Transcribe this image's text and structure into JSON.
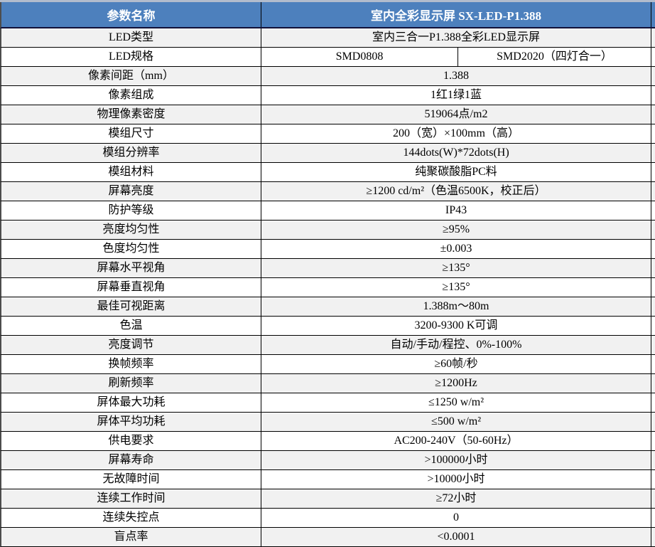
{
  "header": {
    "param_col": "参数名称",
    "product_col": "室内全彩显示屏 SX-LED-P1.388"
  },
  "colors": {
    "header_bg": "#4d80bd",
    "header_text": "#ffffff",
    "row_bg": "#ffffff",
    "row_alt_bg": "#f1f1f1",
    "grid_border": "#000000",
    "outer_left_border": "#4d4d4d",
    "top_strip": "#b2bccd",
    "header_divider": "#12123a"
  },
  "rows": [
    {
      "label": "LED类型",
      "value": "室内三合一P1.388全彩LED显示屏"
    },
    {
      "label": "LED规格",
      "values": [
        "SMD0808",
        "SMD2020（四灯合一）"
      ]
    },
    {
      "label": "像素间距（mm）",
      "value": "1.388"
    },
    {
      "label": "像素组成",
      "value": "1红1绿1蓝"
    },
    {
      "label": "物理像素密度",
      "value": "519064点/m2"
    },
    {
      "label": "模组尺寸",
      "value": "200（宽）×100mm（高）"
    },
    {
      "label": "模组分辨率",
      "value": "144dots(W)*72dots(H)"
    },
    {
      "label": "模组材料",
      "value": "纯聚碳酸脂PC料"
    },
    {
      "label": "屏幕亮度",
      "value": "≥1200 cd/m²（色温6500K，校正后）"
    },
    {
      "label": "防护等级",
      "value": "IP43"
    },
    {
      "label": "亮度均匀性",
      "value": "≥95%"
    },
    {
      "label": "色度均匀性",
      "value": "±0.003"
    },
    {
      "label": "屏幕水平视角",
      "value": "≥135°"
    },
    {
      "label": "屏幕垂直视角",
      "value": "≥135°"
    },
    {
      "label": "最佳可视距离",
      "value": "1.388m～80m"
    },
    {
      "label": "色温",
      "value": "3200-9300 K可调"
    },
    {
      "label": "亮度调节",
      "value": "自动/手动/程控、0%-100%"
    },
    {
      "label": "换帧频率",
      "value": "≥60帧/秒"
    },
    {
      "label": "刷新频率",
      "value": "≥1200Hz"
    },
    {
      "label": "屏体最大功耗",
      "value": "≤1250 w/m²"
    },
    {
      "label": "屏体平均功耗",
      "value": "≤500 w/m²"
    },
    {
      "label": "供电要求",
      "value": "AC200-240V（50-60Hz）"
    },
    {
      "label": "屏幕寿命",
      "value": ">100000小时"
    },
    {
      "label": "无故障时间",
      "value": ">10000小时"
    },
    {
      "label": "连续工作时间",
      "value": "≥72小时"
    },
    {
      "label": "连续失控点",
      "value": "0"
    },
    {
      "label": "盲点率",
      "value": "<0.0001"
    }
  ]
}
